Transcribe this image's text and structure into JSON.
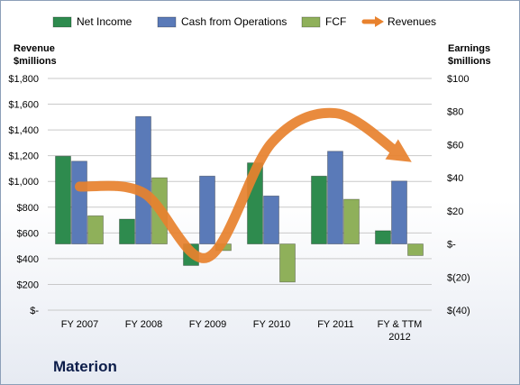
{
  "chart_data": {
    "type": "bar",
    "categories": [
      "FY 2007",
      "FY 2008",
      "FY 2009",
      "FY 2010",
      "FY 2011",
      "FY & TTM 2012"
    ],
    "series": [
      {
        "name": "Net Income",
        "axis": "right",
        "color": "#2e8b4e",
        "values": [
          53,
          15,
          -13,
          49,
          41,
          8
        ]
      },
      {
        "name": "Cash from Operations",
        "axis": "right",
        "color": "#5a7ab8",
        "values": [
          50,
          77,
          41,
          29,
          56,
          38
        ]
      },
      {
        "name": "FCF",
        "axis": "right",
        "color": "#8fb05a",
        "values": [
          17,
          40,
          -4,
          -23,
          27,
          -7
        ]
      },
      {
        "name": "Revenues",
        "axis": "left",
        "type": "line",
        "color": "#e8822e",
        "values": [
          960,
          910,
          410,
          1300,
          1530,
          1210
        ]
      }
    ],
    "left_axis": {
      "title": "Revenue\n$millions",
      "min": 0,
      "max": 1800,
      "ticks": [
        "$-",
        "$200",
        "$400",
        "$600",
        "$800",
        "$1,000",
        "$1,200",
        "$1,400",
        "$1,600",
        "$1,800"
      ]
    },
    "right_axis": {
      "title": "Earnings\n$millions",
      "min": -40,
      "max": 100,
      "ticks": [
        "$(40)",
        "$(20)",
        "$-",
        "$20",
        "$40",
        "$60",
        "$80",
        "$100"
      ]
    },
    "legend_position": "top",
    "grid": true,
    "company": "Materion"
  }
}
